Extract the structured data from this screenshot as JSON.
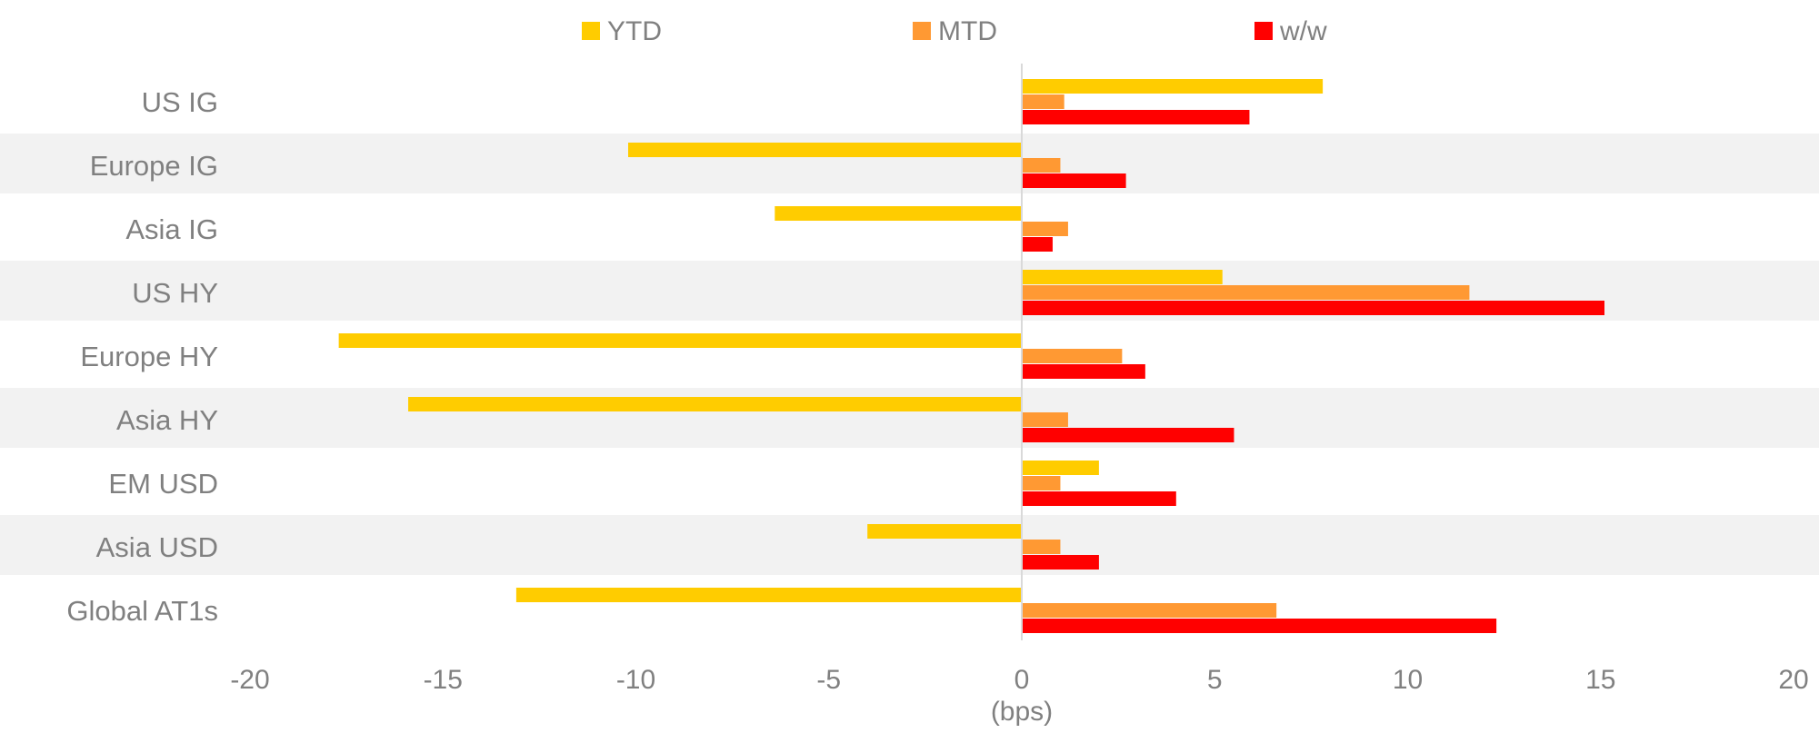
{
  "chart_data": {
    "type": "bar",
    "orientation": "horizontal",
    "categories": [
      "US IG",
      "Europe IG",
      "Asia IG",
      "US HY",
      "Europe HY",
      "Asia HY",
      "EM USD",
      "Asia USD",
      "Global AT1s"
    ],
    "series": [
      {
        "name": "YTD",
        "color": "#FFCC00",
        "values": [
          7.8,
          -10.2,
          -6.4,
          5.2,
          -17.7,
          -15.9,
          2.0,
          -4.0,
          -13.1
        ]
      },
      {
        "name": "MTD",
        "color": "#FF9933",
        "values": [
          1.1,
          1.0,
          1.2,
          11.6,
          2.6,
          1.2,
          1.0,
          1.0,
          6.6
        ]
      },
      {
        "name": "w/w",
        "color": "#FF0000",
        "values": [
          5.9,
          2.7,
          0.8,
          15.1,
          3.2,
          5.5,
          4.0,
          2.0,
          12.3
        ]
      }
    ],
    "xlim": [
      -20,
      20
    ],
    "xticks": [
      "-20",
      "-15",
      "-10",
      "-5",
      "0",
      "5",
      "10",
      "15",
      "20"
    ],
    "xlabel": "(bps)",
    "ylabel": "",
    "title": "",
    "legend_position": "top",
    "band_color": "#F2F2F2",
    "zero_line_color": "#D9D9D9",
    "text_color": "#808080"
  }
}
